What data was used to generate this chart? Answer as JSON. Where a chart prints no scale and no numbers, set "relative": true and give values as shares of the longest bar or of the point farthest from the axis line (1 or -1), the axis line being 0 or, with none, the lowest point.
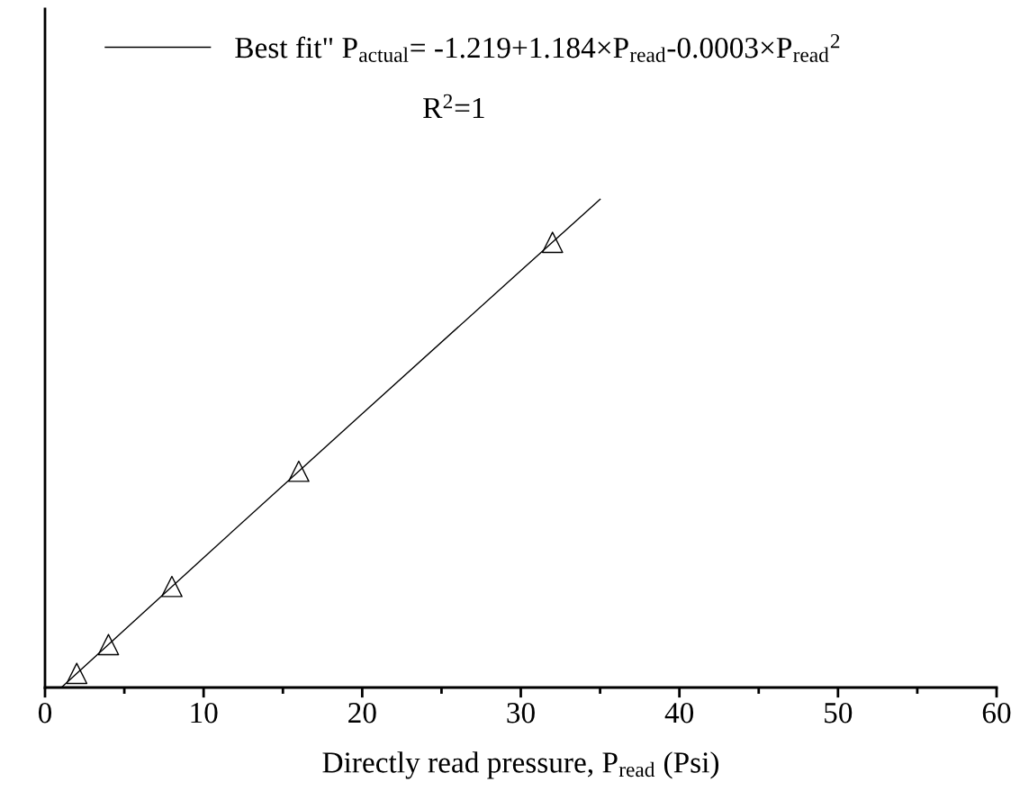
{
  "chart_data": {
    "type": "scatter",
    "relative": true,
    "xlabel": "Directly read pressure, P$_{read}$ (Psi)",
    "xlim": [
      0,
      60
    ],
    "xticks": [
      0,
      10,
      20,
      30,
      40,
      50,
      60
    ],
    "legend": "top",
    "annotations": [
      "R$^{2}$=1"
    ],
    "series": [
      {
        "color": "#000000",
        "marker": "triangle",
        "x": [
          2,
          4,
          8,
          16,
          32
        ],
        "values": [
          0.029,
          0.088,
          0.207,
          0.443,
          0.912
        ]
      },
      {
        "type": "line",
        "name": "Best fit\" P$_{actual}$= -1.219+1.184×P$_{read}$-0.0003×P$_{read}$$^{2}$",
        "color": "#000000",
        "marker": "none",
        "line_style": "solid",
        "x": [
          1.03,
          10,
          20,
          30,
          35
        ],
        "values": [
          0,
          0.266,
          0.561,
          0.854,
          1
        ]
      }
    ]
  }
}
